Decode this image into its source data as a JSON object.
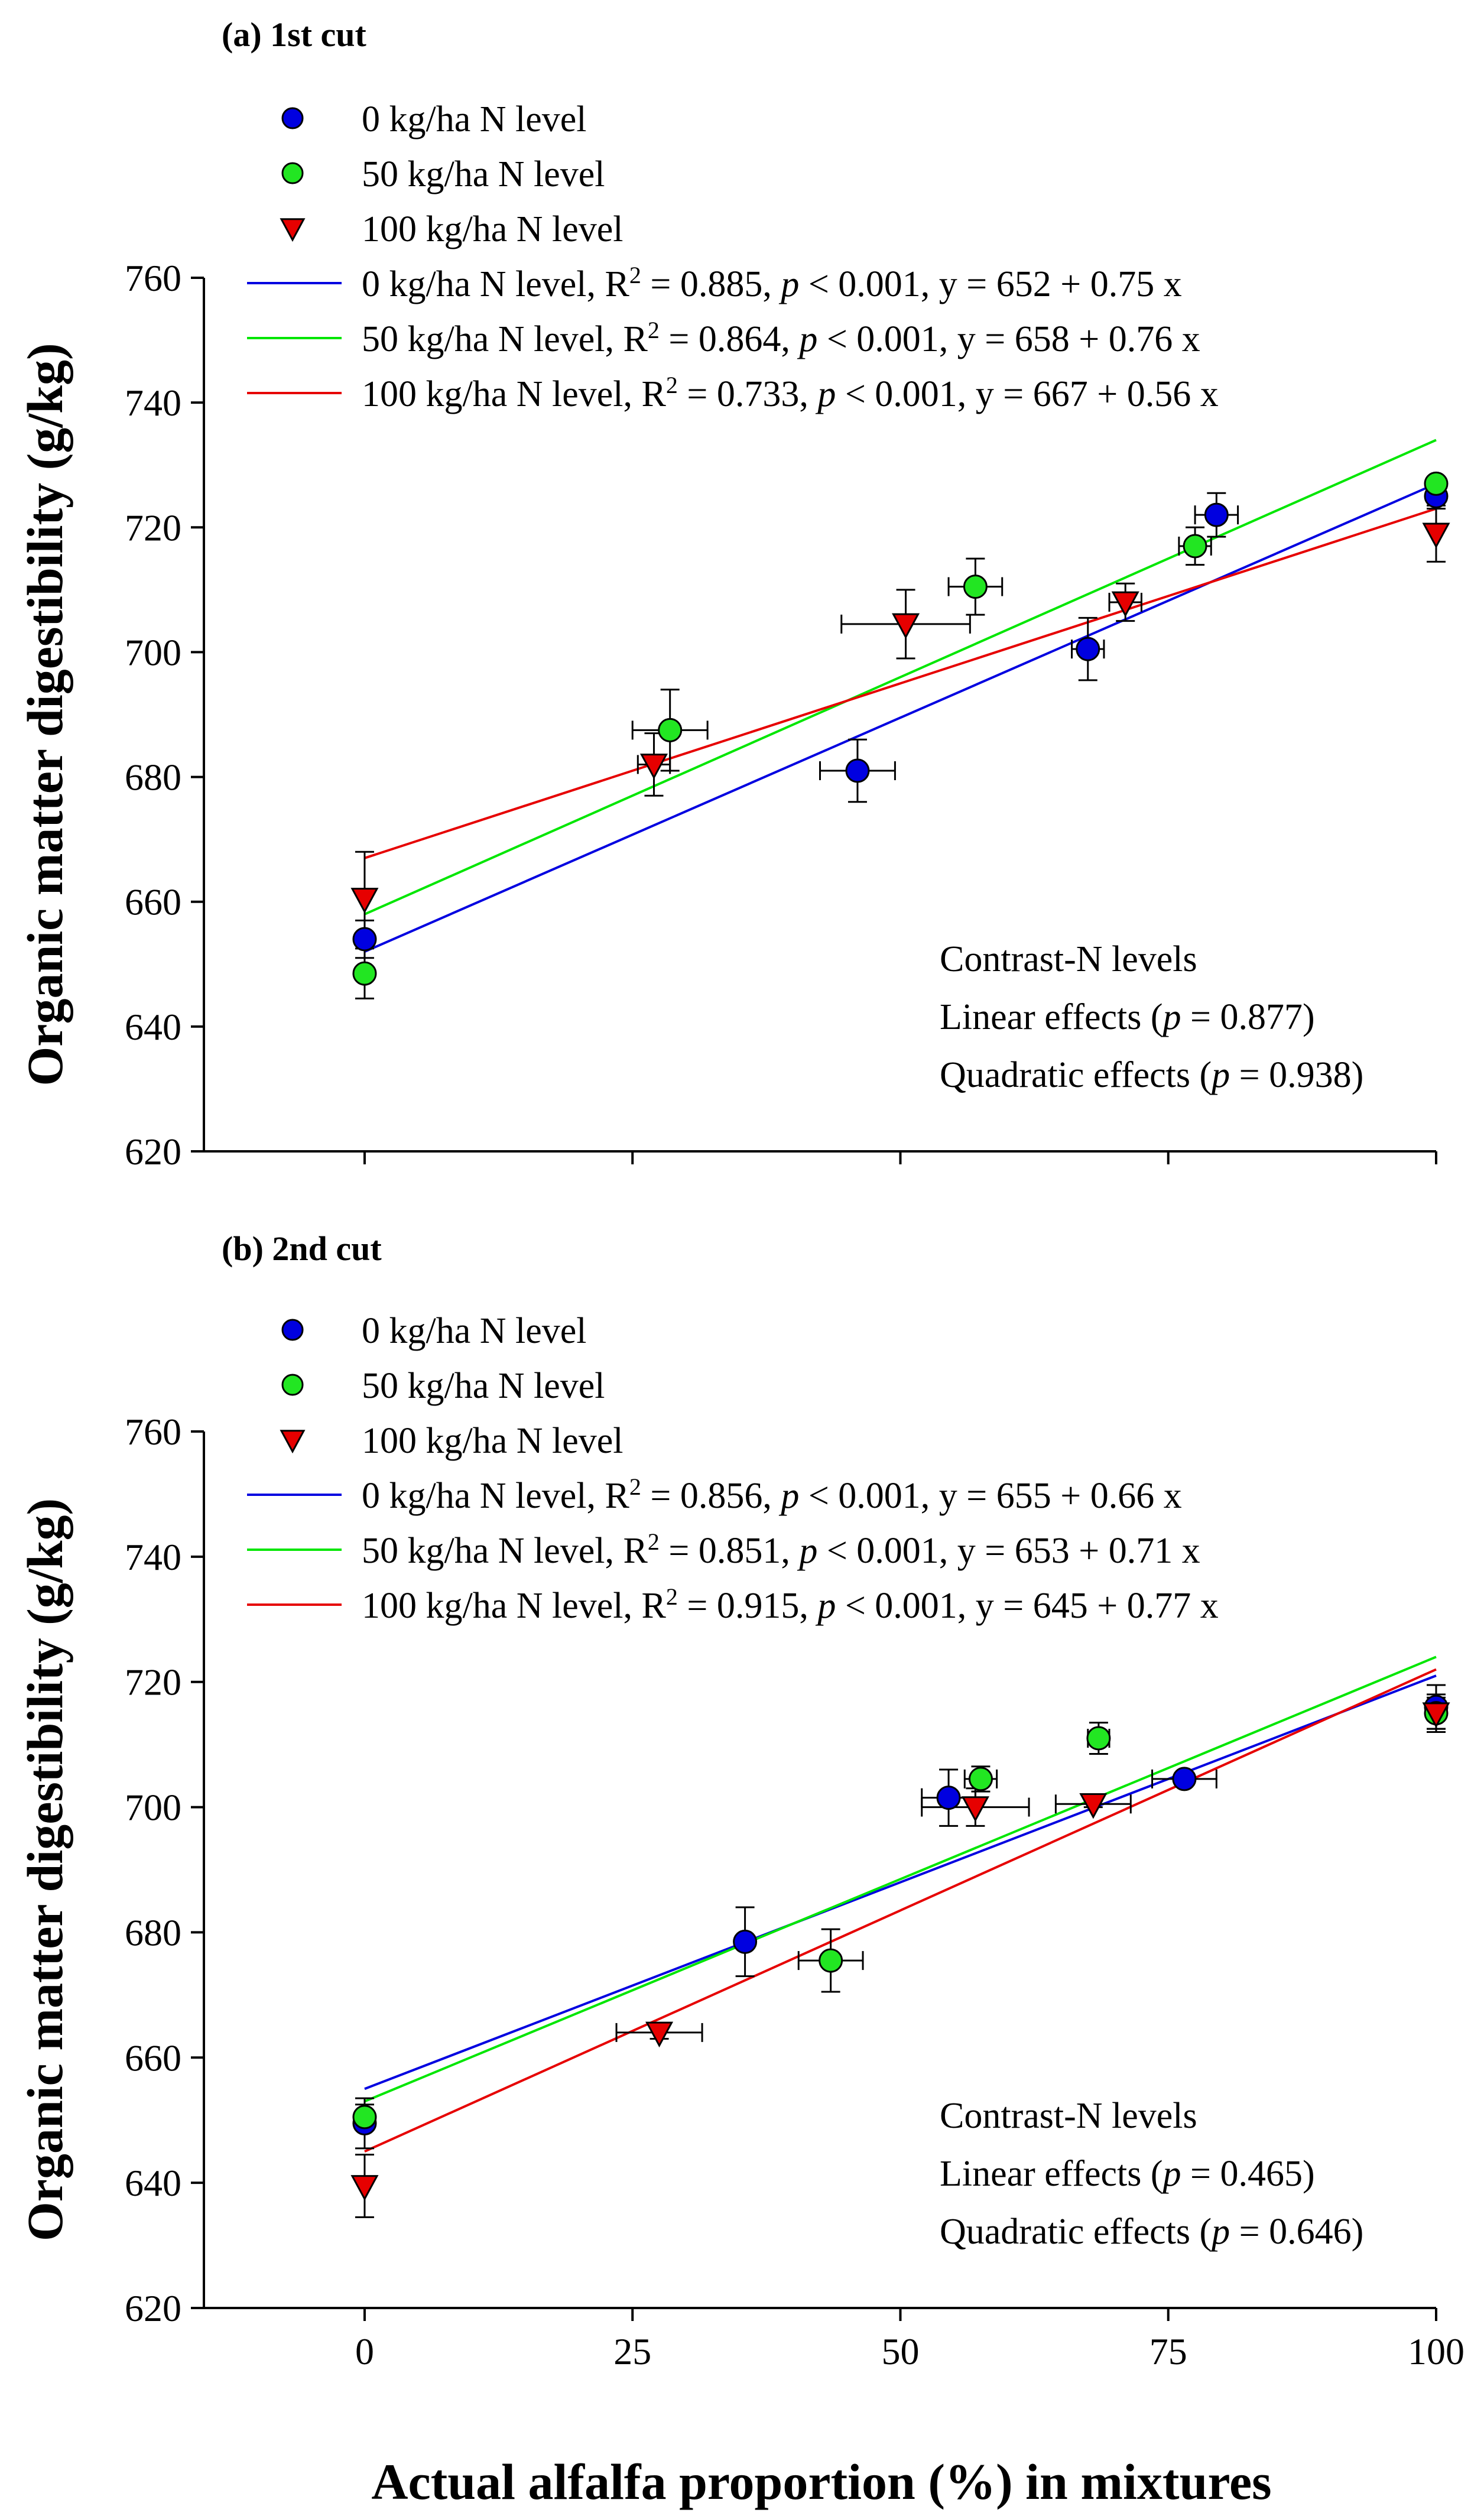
{
  "figure": {
    "xlabel": "Actual alfalfa proportion (%)  in mixtures"
  },
  "chart_data": [
    {
      "type": "scatter",
      "title": "(a)  1st cut",
      "ylabel": "Organic matter digestibility (g/kg)",
      "xlabel": "Actual alfalfa proportion (%)  in mixtures",
      "xlim": [
        -15,
        100
      ],
      "ylim": [
        620,
        760
      ],
      "xticks": [
        0,
        25,
        50,
        75,
        100
      ],
      "yticks": [
        620,
        640,
        660,
        680,
        700,
        720,
        740,
        760
      ],
      "grid": false,
      "legend_position": "top-left",
      "series": [
        {
          "name": "0 kg/ha N level",
          "marker": "circle",
          "color": "#0000e0",
          "points": [
            {
              "x": 0,
              "y": 654,
              "xerr": 0,
              "yerr": 3
            },
            {
              "x": 46,
              "y": 681,
              "xerr": 3.5,
              "yerr": 5
            },
            {
              "x": 67.5,
              "y": 700.5,
              "xerr": 1.5,
              "yerr": 5
            },
            {
              "x": 79.5,
              "y": 722,
              "xerr": 2,
              "yerr": 3.5
            },
            {
              "x": 100,
              "y": 725,
              "xerr": 0,
              "yerr": 2
            }
          ]
        },
        {
          "name": "50 kg/ha N level",
          "marker": "circle",
          "color": "#22e622",
          "points": [
            {
              "x": 0,
              "y": 648.5,
              "xerr": 0,
              "yerr": 4
            },
            {
              "x": 28.5,
              "y": 687.5,
              "xerr": 3.5,
              "yerr": 6.5
            },
            {
              "x": 57,
              "y": 710.5,
              "xerr": 2.5,
              "yerr": 4.5
            },
            {
              "x": 77.5,
              "y": 717,
              "xerr": 1.5,
              "yerr": 3
            },
            {
              "x": 100,
              "y": 727,
              "xerr": 0,
              "yerr": 1
            }
          ]
        },
        {
          "name": "100 kg/ha N level",
          "marker": "triangle-down",
          "color": "#e60000",
          "points": [
            {
              "x": 0,
              "y": 660.5,
              "xerr": 0,
              "yerr": 7.5
            },
            {
              "x": 27,
              "y": 682,
              "xerr": 1.5,
              "yerr": 5
            },
            {
              "x": 50.5,
              "y": 704.5,
              "xerr": 6,
              "yerr": 5.5
            },
            {
              "x": 71,
              "y": 708,
              "xerr": 1.5,
              "yerr": 3
            },
            {
              "x": 100,
              "y": 719,
              "xerr": 0,
              "yerr": 4.5
            }
          ]
        }
      ],
      "fits": [
        {
          "label": "0 kg/ha N level, R",
          "r2": "0.885",
          "p": "< 0.001",
          "eq": "y = 652 + 0.75 x",
          "intercept": 652,
          "slope": 0.75,
          "color": "#0000e0"
        },
        {
          "label": "50 kg/ha N level, R",
          "r2": "0.864",
          "p": "< 0.001",
          "eq": "y = 658 + 0.76 x",
          "intercept": 658,
          "slope": 0.76,
          "color": "#00e600"
        },
        {
          "label": "100 kg/ha N level, R",
          "r2": "0.733",
          "p": "< 0.001",
          "eq": "y = 667 + 0.56 x",
          "intercept": 667,
          "slope": 0.56,
          "color": "#e60000"
        }
      ],
      "annotation": {
        "line1": "Contrast-N levels",
        "line2_prefix": "Linear effects (",
        "line2_p": "p",
        "line2_suffix": " = 0.877)",
        "line3_prefix": "Quadratic effects (",
        "line3_p": "p",
        "line3_suffix": " = 0.938)"
      }
    },
    {
      "type": "scatter",
      "title": "(b)  2nd cut",
      "ylabel": "Organic matter digestibility (g/kg)",
      "xlabel": "Actual alfalfa proportion (%)  in mixtures",
      "xlim": [
        -15,
        100
      ],
      "ylim": [
        620,
        760
      ],
      "xticks": [
        0,
        25,
        50,
        75,
        100
      ],
      "yticks": [
        620,
        640,
        660,
        680,
        700,
        720,
        740,
        760
      ],
      "grid": false,
      "legend_position": "top-left",
      "series": [
        {
          "name": "0 kg/ha N level",
          "marker": "circle",
          "color": "#0000e0",
          "points": [
            {
              "x": 0,
              "y": 649.5,
              "xerr": 0,
              "yerr": 4
            },
            {
              "x": 35.5,
              "y": 678.5,
              "xerr": 0.5,
              "yerr": 5.5
            },
            {
              "x": 54.5,
              "y": 701.5,
              "xerr": 2.5,
              "yerr": 4.5
            },
            {
              "x": 76.5,
              "y": 704.5,
              "xerr": 3,
              "yerr": 1
            },
            {
              "x": 100,
              "y": 716,
              "xerr": 0,
              "yerr": 3.5
            }
          ]
        },
        {
          "name": "50 kg/ha N level",
          "marker": "circle",
          "color": "#22e622",
          "points": [
            {
              "x": 0,
              "y": 650.5,
              "xerr": 0,
              "yerr": 2
            },
            {
              "x": 43.5,
              "y": 675.5,
              "xerr": 3,
              "yerr": 5
            },
            {
              "x": 57.5,
              "y": 704.5,
              "xerr": 1.5,
              "yerr": 2
            },
            {
              "x": 68.5,
              "y": 711,
              "xerr": 1,
              "yerr": 2.5
            },
            {
              "x": 100,
              "y": 715,
              "xerr": 0,
              "yerr": 2.5
            }
          ]
        },
        {
          "name": "100 kg/ha N level",
          "marker": "triangle-down",
          "color": "#e60000",
          "points": [
            {
              "x": 0,
              "y": 639.5,
              "xerr": 0,
              "yerr": 5
            },
            {
              "x": 27.5,
              "y": 664,
              "xerr": 4,
              "yerr": 1
            },
            {
              "x": 57,
              "y": 700,
              "xerr": 5,
              "yerr": 3
            },
            {
              "x": 68,
              "y": 700.5,
              "xerr": 3.5,
              "yerr": 0.5
            },
            {
              "x": 100,
              "y": 715,
              "xerr": 0,
              "yerr": 3
            }
          ]
        }
      ],
      "fits": [
        {
          "label": "0 kg/ha N level, R",
          "r2": "0.856",
          "p": "< 0.001",
          "eq": "y = 655 + 0.66 x",
          "intercept": 655,
          "slope": 0.66,
          "color": "#0000e0"
        },
        {
          "label": "50 kg/ha N level, R",
          "r2": "0.851",
          "p": "< 0.001",
          "eq": "y = 653 + 0.71 x",
          "intercept": 653,
          "slope": 0.71,
          "color": "#00e600"
        },
        {
          "label": "100 kg/ha N level, R",
          "r2": "0.915",
          "p": "< 0.001",
          "eq": "y = 645 + 0.77 x",
          "intercept": 645,
          "slope": 0.77,
          "color": "#e60000"
        }
      ],
      "annotation": {
        "line1": "Contrast-N levels",
        "line2_prefix": "Linear effects (",
        "line2_p": "p",
        "line2_suffix": " = 0.465)",
        "line3_prefix": "Quadratic effects (",
        "line3_p": "p",
        "line3_suffix": " = 0.646)"
      }
    }
  ]
}
